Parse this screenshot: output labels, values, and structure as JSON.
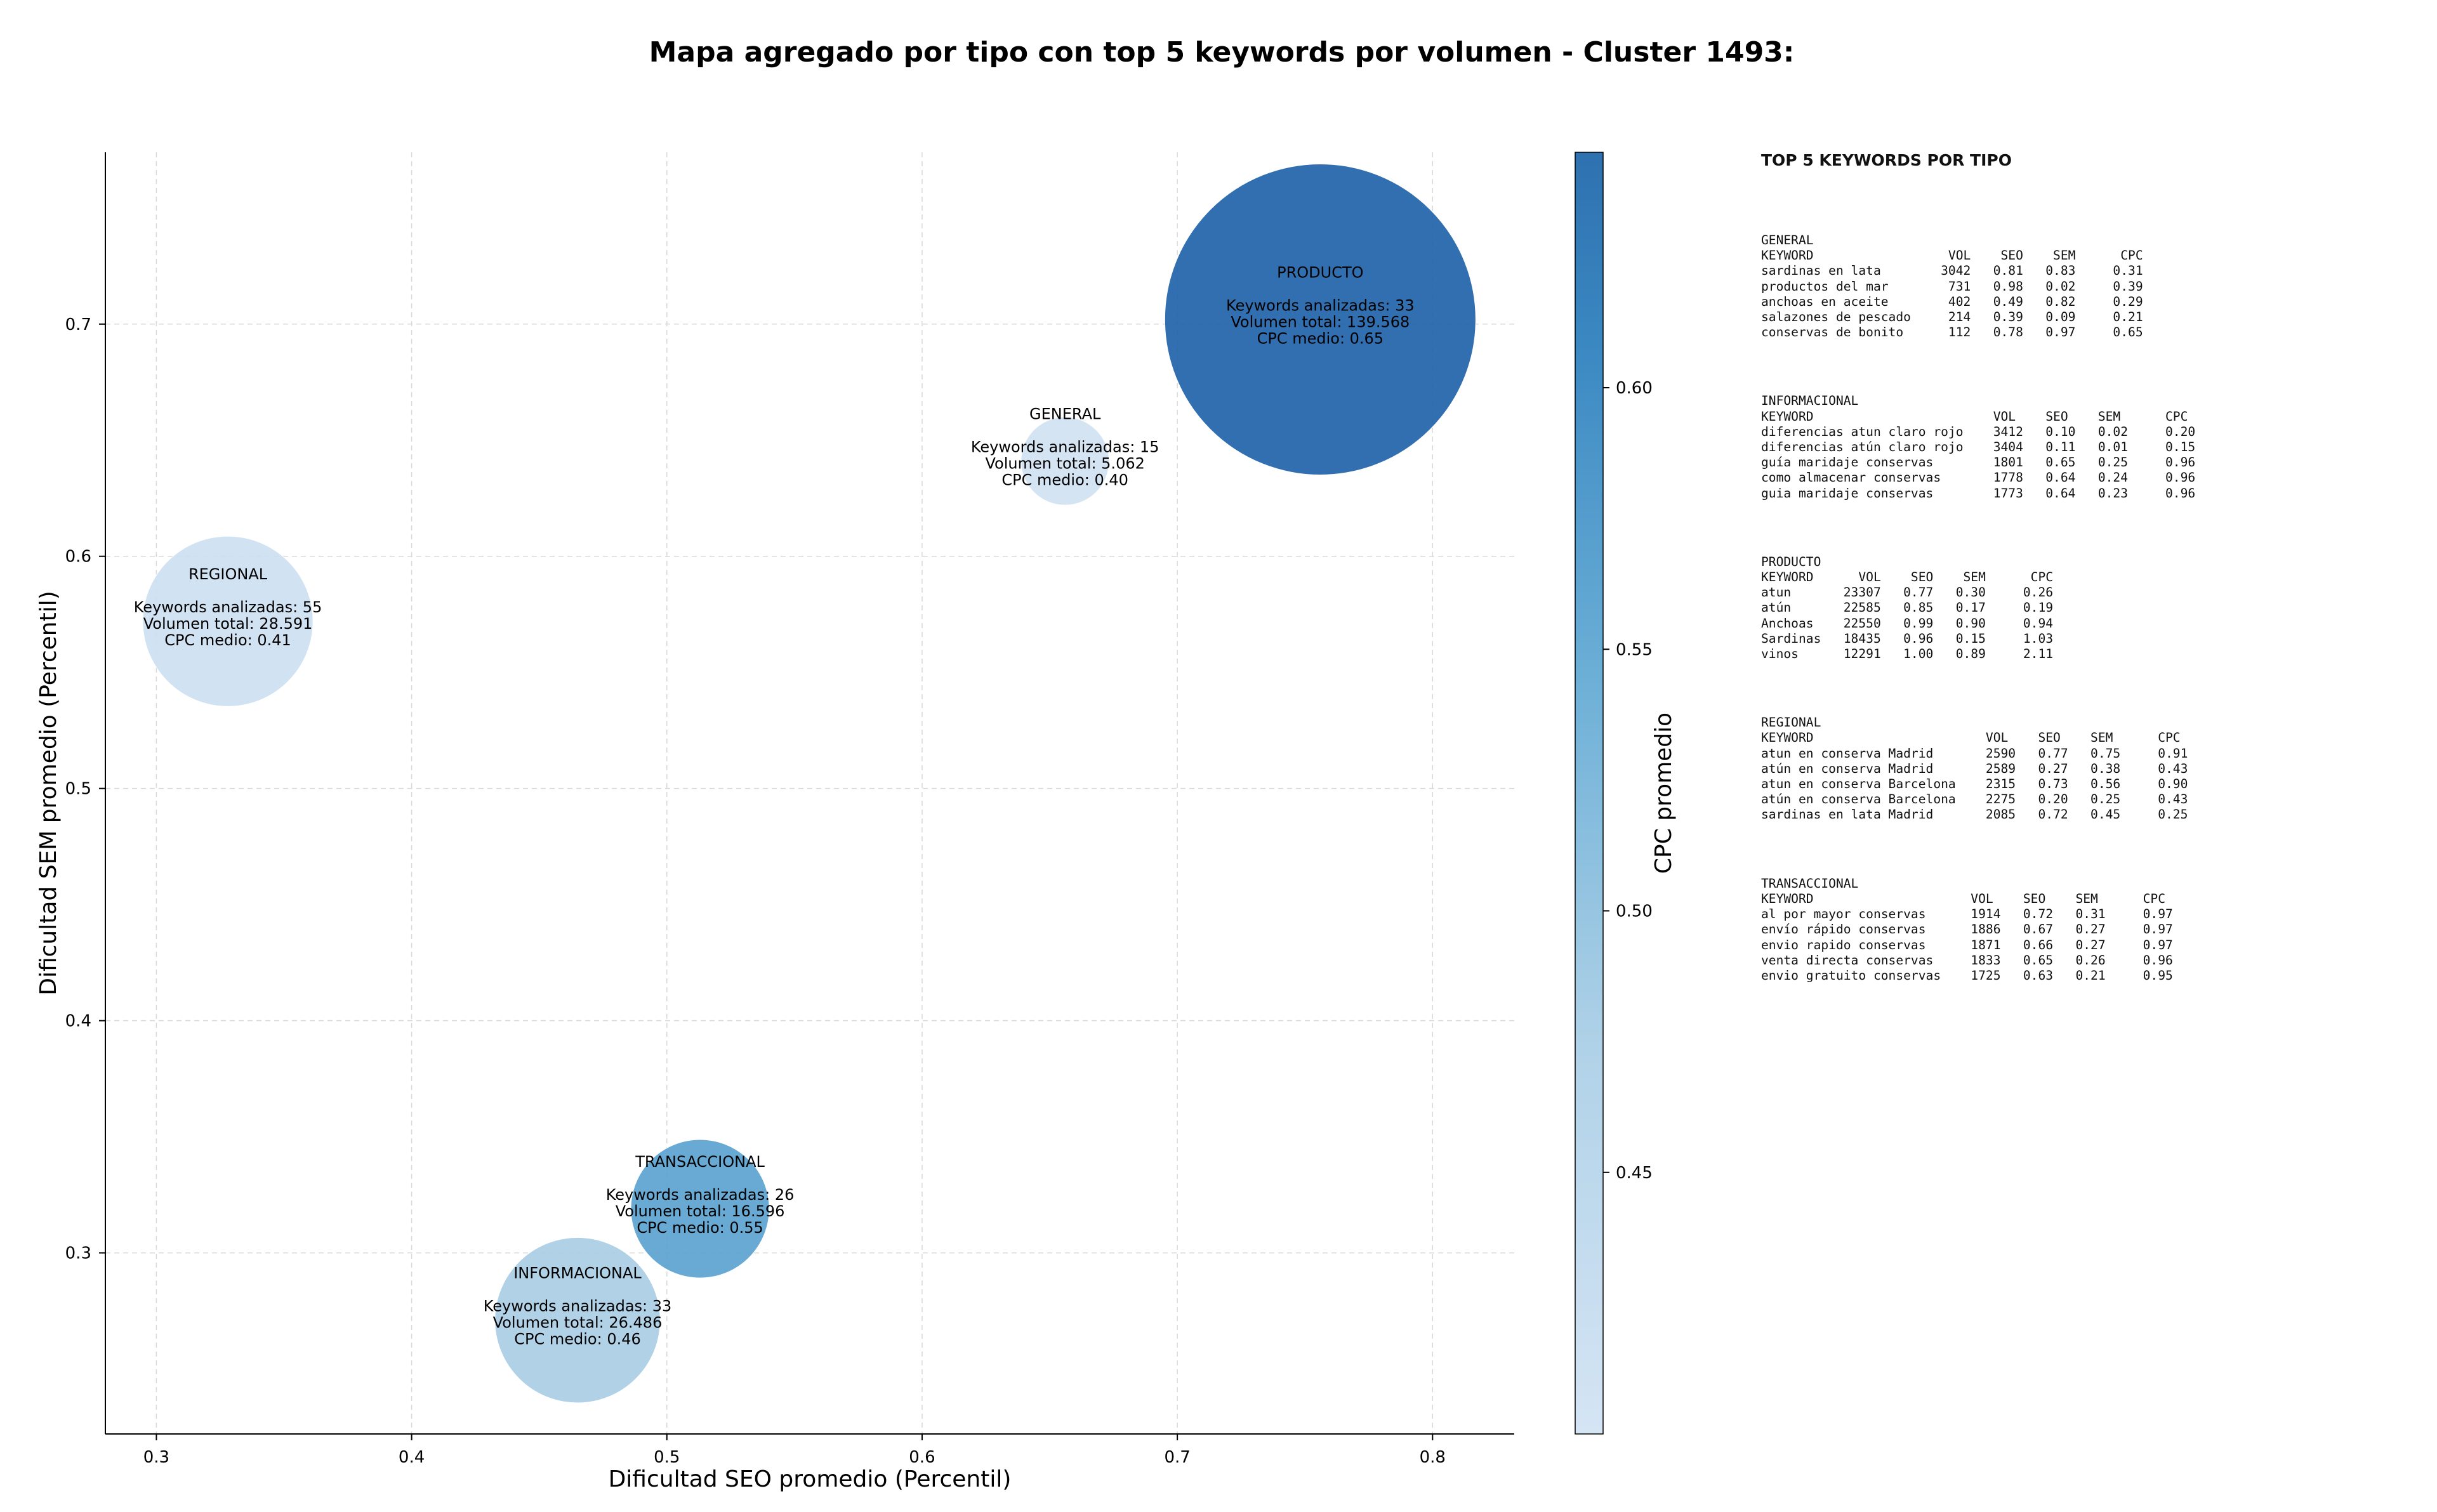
{
  "chart_data": {
    "type": "scatter",
    "title": "Mapa agregado por tipo con top 5 keywords por volumen - Cluster 1493:",
    "xlabel": "Dificultad SEO promedio (Percentil)",
    "ylabel": "Dificultad SEM promedio (Percentil)",
    "colorbar_label": "CPC promedio",
    "xlim": [
      0.28,
      0.832
    ],
    "ylim": [
      0.222,
      0.774
    ],
    "xticks": [
      "0.3",
      "0.4",
      "0.5",
      "0.6",
      "0.7",
      "0.8"
    ],
    "yticks": [
      "0.3",
      "0.4",
      "0.5",
      "0.6",
      "0.7"
    ],
    "colorbar_range": [
      0.4,
      0.645
    ],
    "colorbar_ticks": [
      "0.45",
      "0.50",
      "0.55",
      "0.60"
    ],
    "grid": true,
    "bubbles": [
      {
        "tipo": "REGIONAL",
        "x": 0.328,
        "y": 0.572,
        "keywords_text": "Keywords analizadas: 55",
        "volumen_text": "Volumen total: 28.591",
        "cpc_text": "CPC medio: 0.41",
        "volume": 28591,
        "cpc": 0.41,
        "color": "#cddff1"
      },
      {
        "tipo": "INFORMACIONAL",
        "x": 0.465,
        "y": 0.271,
        "keywords_text": "Keywords analizadas: 33",
        "volumen_text": "Volumen total: 26.486",
        "cpc_text": "CPC medio: 0.46",
        "volume": 26486,
        "cpc": 0.46,
        "color": "#a9cde4"
      },
      {
        "tipo": "TRANSACCIONAL",
        "x": 0.513,
        "y": 0.319,
        "keywords_text": "Keywords analizadas: 26",
        "volumen_text": "Volumen total: 16.596",
        "cpc_text": "CPC medio: 0.55",
        "volume": 16596,
        "cpc": 0.55,
        "color": "#5ba3d0"
      },
      {
        "tipo": "GENERAL",
        "x": 0.656,
        "y": 0.641,
        "keywords_text": "Keywords analizadas: 15",
        "volumen_text": "Volumen total: 5.062",
        "cpc_text": "CPC medio: 0.40",
        "volume": 5062,
        "cpc": 0.4,
        "color": "#d1e2f2"
      },
      {
        "tipo": "PRODUCTO",
        "x": 0.756,
        "y": 0.702,
        "keywords_text": "Keywords analizadas: 33",
        "volumen_text": "Volumen total: 139.568",
        "cpc_text": "CPC medio: 0.65",
        "volume": 139568,
        "cpc": 0.65,
        "color": "#1f63aa"
      }
    ]
  },
  "side_panel": {
    "title": "TOP 5 KEYWORDS POR TIPO",
    "blocks": [
      {
        "text": "GENERAL\nKEYWORD                  VOL    SEO    SEM      CPC\nsardinas en lata        3042   0.81   0.83     0.31\nproductos del mar        731   0.98   0.02     0.39\nanchoas en aceite        402   0.49   0.82     0.29\nsalazones de pescado     214   0.39   0.09     0.21\nconservas de bonito      112   0.78   0.97     0.65"
      },
      {
        "text": "INFORMACIONAL\nKEYWORD                        VOL    SEO    SEM      CPC\ndiferencias atun claro rojo    3412   0.10   0.02     0.20\ndiferencias atún claro rojo    3404   0.11   0.01     0.15\nguía maridaje conservas        1801   0.65   0.25     0.96\ncomo almacenar conservas       1778   0.64   0.24     0.96\nguia maridaje conservas        1773   0.64   0.23     0.96"
      },
      {
        "text": "PRODUCTO\nKEYWORD      VOL    SEO    SEM      CPC\natun       23307   0.77   0.30     0.26\natún       22585   0.85   0.17     0.19\nAnchoas    22550   0.99   0.90     0.94\nSardinas   18435   0.96   0.15     1.03\nvinos      12291   1.00   0.89     2.11"
      },
      {
        "text": "REGIONAL\nKEYWORD                       VOL    SEO    SEM      CPC\natun en conserva Madrid       2590   0.77   0.75     0.91\natún en conserva Madrid       2589   0.27   0.38     0.43\natun en conserva Barcelona    2315   0.73   0.56     0.90\natún en conserva Barcelona    2275   0.20   0.25     0.43\nsardinas en lata Madrid       2085   0.72   0.45     0.25"
      },
      {
        "text": "TRANSACCIONAL\nKEYWORD                     VOL    SEO    SEM      CPC\nal por mayor conservas      1914   0.72   0.31     0.97\nenvío rápido conservas      1886   0.67   0.27     0.97\nenvio rapido conservas      1871   0.66   0.27     0.97\nventa directa conservas     1833   0.65   0.26     0.96\nenvio gratuito conservas    1725   0.63   0.21     0.95"
      }
    ]
  }
}
